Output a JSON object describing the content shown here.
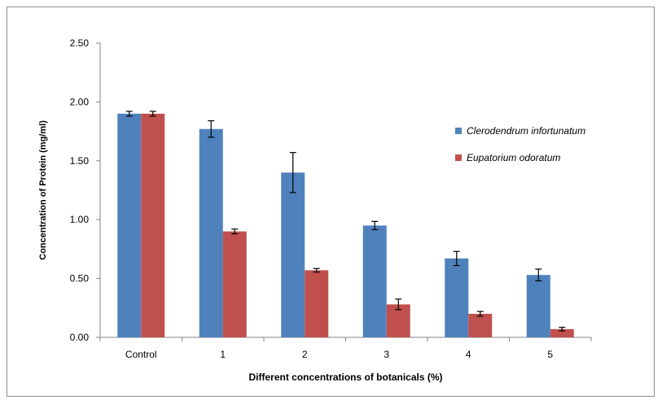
{
  "chart_data": {
    "type": "bar",
    "title": "",
    "xlabel": "Different concentrations of botanicals (%)",
    "ylabel": "Concentration of Protein (mg/ml)",
    "ylim": [
      0,
      2.5
    ],
    "yticks": [
      "0.00",
      "0.50",
      "1.00",
      "1.50",
      "2.00",
      "2.50"
    ],
    "categories": [
      "Control",
      "1",
      "2",
      "3",
      "4",
      "5"
    ],
    "legend_position": "right",
    "grid": false,
    "series": [
      {
        "name": "Clerodendrum infortunatum",
        "color": "#4f81bd",
        "values": [
          1.9,
          1.77,
          1.4,
          0.95,
          0.67,
          0.53
        ],
        "errors": [
          0.02,
          0.07,
          0.17,
          0.035,
          0.06,
          0.05
        ]
      },
      {
        "name": "Eupatorium odoratum",
        "color": "#c0504d",
        "values": [
          1.9,
          0.9,
          0.57,
          0.28,
          0.2,
          0.07
        ],
        "errors": [
          0.02,
          0.02,
          0.015,
          0.045,
          0.02,
          0.015
        ]
      }
    ]
  }
}
